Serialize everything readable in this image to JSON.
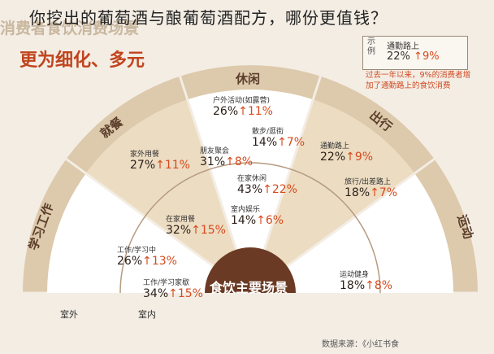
{
  "overlay_title": "你挖出的葡萄酒与酿葡萄酒配方，哪份更值钱？",
  "faded_header": "消费者食饮消费场景",
  "subtitle": "更为细化、多元",
  "legend": {
    "label": "示例",
    "item": "通勤路上",
    "value": "22%",
    "change": "↑9%"
  },
  "note": "过去一年以来，9%的消费者增加了通勤路上的食饮消费",
  "center": "食饮主要场景",
  "categories": [
    {
      "name": "学习工作"
    },
    {
      "name": "就餐"
    },
    {
      "name": "休闲"
    },
    {
      "name": "出行"
    },
    {
      "name": "运动"
    }
  ],
  "items": [
    {
      "label": "户外活动(如露营)",
      "value": "26%",
      "change": "↑11%"
    },
    {
      "label": "散步/逛街",
      "value": "14%",
      "change": "↑7%"
    },
    {
      "label": "朋友聚会",
      "value": "31%",
      "change": "↑8%"
    },
    {
      "label": "在家休闲",
      "value": "43%",
      "change": "↑22%"
    },
    {
      "label": "室内娱乐",
      "value": "14%",
      "change": "↑6%"
    },
    {
      "label": "家外用餐",
      "value": "27%",
      "change": "↑11%"
    },
    {
      "label": "在家用餐",
      "value": "32%",
      "change": "↑15%"
    },
    {
      "label": "工作/学习中",
      "value": "26%",
      "change": "↑13%"
    },
    {
      "label": "工作/学习家歇",
      "value": "34%",
      "change": "↑15%"
    },
    {
      "label": "通勤路上",
      "value": "22%",
      "change": "↑9%"
    },
    {
      "label": "旅行/出差路上",
      "value": "18%",
      "change": "↑7%"
    },
    {
      "label": "运动健身",
      "value": "18%",
      "change": "↑8%"
    }
  ],
  "bottom": {
    "outdoor": "室外",
    "indoor": "室内"
  },
  "source": "数据来源：《小红书食"
}
